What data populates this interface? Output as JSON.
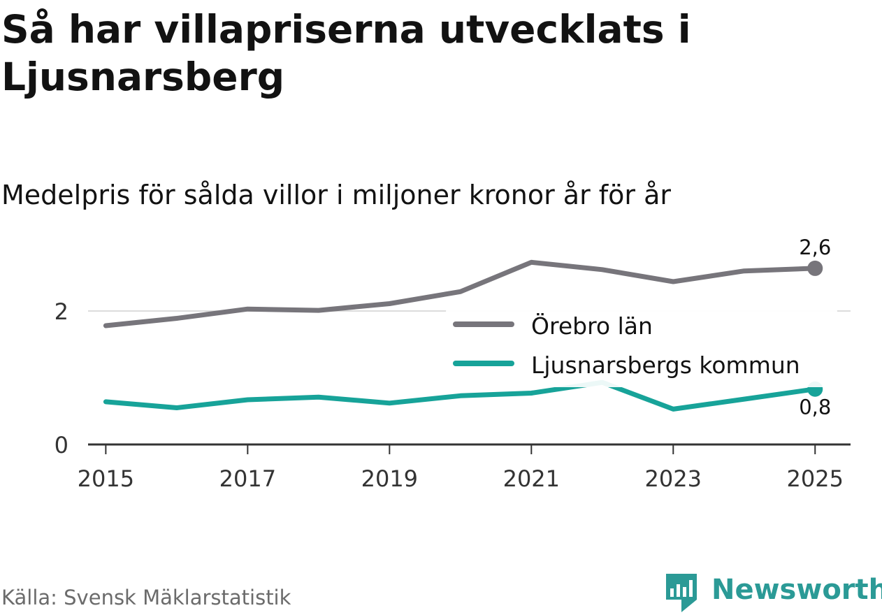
{
  "title": "Så har villapriserna utvecklats i Ljusnarsberg",
  "subtitle": "Medelpris för sålda villor i miljoner kronor år för år",
  "source": "Källa: Svensk Mäklarstatistik",
  "brand": "Newsworthy",
  "chart_data": {
    "type": "line",
    "x": [
      2015,
      2016,
      2017,
      2018,
      2019,
      2020,
      2021,
      2022,
      2023,
      2024,
      2025
    ],
    "series": [
      {
        "name": "Örebro län",
        "color": "#77757b",
        "values": [
          1.78,
          1.89,
          2.03,
          2.01,
          2.11,
          2.29,
          2.73,
          2.62,
          2.44,
          2.6,
          2.64
        ],
        "end_label": "2,6"
      },
      {
        "name": "Ljusnarsbergs kommun",
        "color": "#17a399",
        "values": [
          0.64,
          0.55,
          0.67,
          0.71,
          0.62,
          0.73,
          0.77,
          0.93,
          0.53,
          0.68,
          0.83
        ],
        "end_label": "0,8"
      }
    ],
    "x_ticks": [
      "2015",
      "2017",
      "2019",
      "2021",
      "2023",
      "2025"
    ],
    "y_ticks": [
      "0",
      "2"
    ],
    "ylim": [
      0,
      3.1
    ],
    "xlim": [
      2014.75,
      2025.5
    ],
    "legend_position": "right-middle"
  }
}
